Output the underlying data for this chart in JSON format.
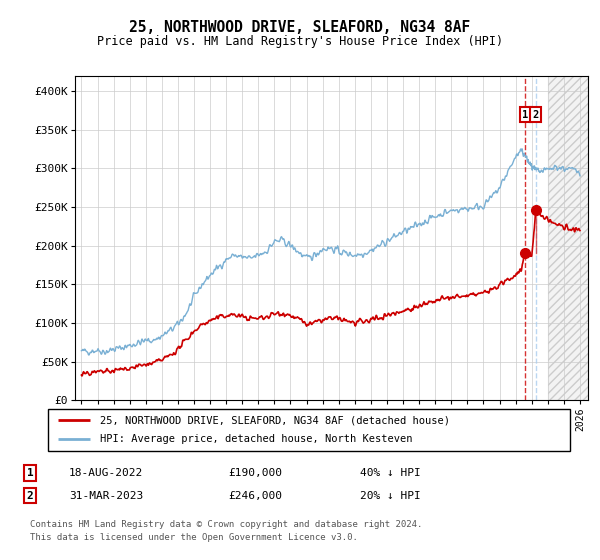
{
  "title": "25, NORTHWOOD DRIVE, SLEAFORD, NG34 8AF",
  "subtitle": "Price paid vs. HM Land Registry's House Price Index (HPI)",
  "ylim": [
    0,
    420000
  ],
  "yticks": [
    0,
    50000,
    100000,
    150000,
    200000,
    250000,
    300000,
    350000,
    400000
  ],
  "ytick_labels": [
    "£0",
    "£50K",
    "£100K",
    "£150K",
    "£200K",
    "£250K",
    "£300K",
    "£350K",
    "£400K"
  ],
  "xlim_start": 1994.6,
  "xlim_end": 2026.5,
  "hpi_color": "#7ab0d4",
  "price_color": "#cc0000",
  "annotation_box_color": "#cc0000",
  "t1_x": 2022.6,
  "t1_y": 190000,
  "t2_x": 2023.25,
  "t2_y": 246000,
  "hatch_start": 2024.0,
  "legend_line1": "25, NORTHWOOD DRIVE, SLEAFORD, NG34 8AF (detached house)",
  "legend_line2": "HPI: Average price, detached house, North Kesteven",
  "row1_date": "18-AUG-2022",
  "row1_price": "£190,000",
  "row1_pct": "40% ↓ HPI",
  "row2_date": "31-MAR-2023",
  "row2_price": "£246,000",
  "row2_pct": "20% ↓ HPI",
  "footnote1": "Contains HM Land Registry data © Crown copyright and database right 2024.",
  "footnote2": "This data is licensed under the Open Government Licence v3.0.",
  "grid_color": "#cccccc",
  "bg_color": "#ffffff"
}
